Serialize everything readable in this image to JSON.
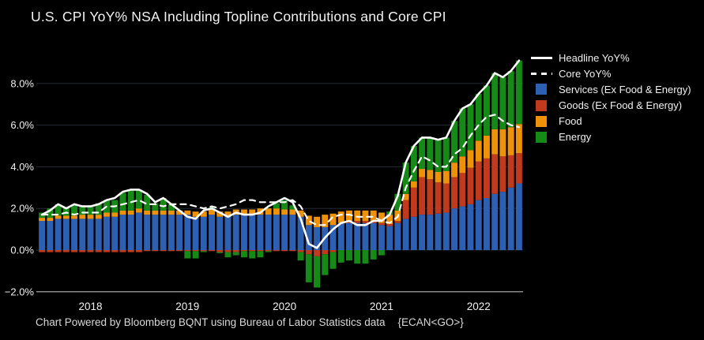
{
  "title": "U.S. CPI YoY% NSA Including Topline Contributions and Core CPI",
  "footer": {
    "text": "Chart Powered by Bloomberg BQNT using Bureau of Labor Statistics data",
    "code": "{ECAN<GO>}"
  },
  "colors": {
    "services": "#2d5fb3",
    "goods": "#c23a1d",
    "food": "#ee9209",
    "energy": "#168a16",
    "headline": "#ffffff",
    "core": "#ffffff",
    "grid": "#222b37",
    "axis": "#b8b8b8",
    "text": "#f0f0f0",
    "background": "#000000"
  },
  "legend": {
    "items": [
      {
        "label": "Headline YoY%",
        "key": "headline",
        "swatch": "line-solid"
      },
      {
        "label": "Core YoY%",
        "key": "core",
        "swatch": "line-dashed"
      },
      {
        "label": "Services (Ex Food & Energy)",
        "key": "services",
        "swatch": "box"
      },
      {
        "label": "Goods (Ex Food & Energy)",
        "key": "goods",
        "swatch": "box"
      },
      {
        "label": "Food",
        "key": "food",
        "swatch": "box"
      },
      {
        "label": "Energy",
        "key": "energy",
        "swatch": "box"
      }
    ]
  },
  "chart_data": {
    "type": "stacked-bar+line",
    "title": "U.S. CPI YoY% NSA Including Topline Contributions and Core CPI",
    "x": [
      "2017-07",
      "2017-08",
      "2017-09",
      "2017-10",
      "2017-11",
      "2017-12",
      "2018-01",
      "2018-02",
      "2018-03",
      "2018-04",
      "2018-05",
      "2018-06",
      "2018-07",
      "2018-08",
      "2018-09",
      "2018-10",
      "2018-11",
      "2018-12",
      "2019-01",
      "2019-02",
      "2019-03",
      "2019-04",
      "2019-05",
      "2019-06",
      "2019-07",
      "2019-08",
      "2019-09",
      "2019-10",
      "2019-11",
      "2019-12",
      "2020-01",
      "2020-02",
      "2020-03",
      "2020-04",
      "2020-05",
      "2020-06",
      "2020-07",
      "2020-08",
      "2020-09",
      "2020-10",
      "2020-11",
      "2020-12",
      "2021-01",
      "2021-02",
      "2021-03",
      "2021-04",
      "2021-05",
      "2021-06",
      "2021-07",
      "2021-08",
      "2021-09",
      "2021-10",
      "2021-11",
      "2021-12",
      "2022-01",
      "2022-02",
      "2022-03",
      "2022-04",
      "2022-05",
      "2022-06"
    ],
    "y_axis": {
      "ticks": [
        -2,
        0,
        2,
        4,
        6,
        8
      ],
      "tick_labels": [
        "−2.0%",
        "0.0%",
        "2.0%",
        "4.0%",
        "6.0%",
        "8.0%"
      ],
      "range": [
        -2.05,
        9.5
      ],
      "unit": "percent",
      "grid": true
    },
    "x_axis": {
      "tick_labels": [
        "2018",
        "2019",
        "2020",
        "2021",
        "2022"
      ],
      "tick_month_index": [
        6,
        18,
        30,
        42,
        54
      ]
    },
    "bar_series": [
      {
        "name": "Services (Ex Food & Energy)",
        "key": "services",
        "values": [
          1.4,
          1.4,
          1.5,
          1.5,
          1.5,
          1.5,
          1.5,
          1.5,
          1.6,
          1.6,
          1.7,
          1.7,
          1.8,
          1.7,
          1.7,
          1.7,
          1.7,
          1.7,
          1.7,
          1.6,
          1.6,
          1.7,
          1.6,
          1.6,
          1.7,
          1.7,
          1.7,
          1.7,
          1.7,
          1.7,
          1.7,
          1.7,
          1.6,
          1.2,
          1.1,
          1.1,
          1.2,
          1.3,
          1.3,
          1.3,
          1.3,
          1.3,
          1.2,
          1.15,
          1.3,
          1.5,
          1.6,
          1.7,
          1.7,
          1.75,
          1.8,
          2.0,
          2.1,
          2.2,
          2.4,
          2.5,
          2.7,
          2.8,
          3.0,
          3.2
        ]
      },
      {
        "name": "Goods (Ex Food & Energy)",
        "key": "goods",
        "values": [
          -0.1,
          -0.1,
          -0.1,
          -0.1,
          -0.1,
          -0.1,
          -0.1,
          -0.1,
          -0.1,
          -0.1,
          -0.1,
          -0.1,
          -0.1,
          -0.05,
          -0.05,
          -0.05,
          -0.05,
          -0.05,
          -0.05,
          -0.05,
          -0.05,
          -0.05,
          -0.1,
          -0.1,
          -0.1,
          -0.05,
          -0.05,
          -0.05,
          -0.05,
          -0.05,
          -0.05,
          -0.05,
          -0.1,
          -0.2,
          -0.3,
          -0.2,
          -0.1,
          0.0,
          0.1,
          0.1,
          0.1,
          0.1,
          0.1,
          0.1,
          0.1,
          0.9,
          1.4,
          1.8,
          1.7,
          1.5,
          1.4,
          1.5,
          1.6,
          1.75,
          1.85,
          1.9,
          1.9,
          1.7,
          1.55,
          1.45
        ]
      },
      {
        "name": "Food",
        "key": "food",
        "values": [
          0.15,
          0.15,
          0.15,
          0.15,
          0.15,
          0.2,
          0.2,
          0.2,
          0.2,
          0.2,
          0.2,
          0.2,
          0.2,
          0.2,
          0.2,
          0.2,
          0.2,
          0.2,
          0.2,
          0.25,
          0.25,
          0.25,
          0.25,
          0.25,
          0.25,
          0.25,
          0.25,
          0.3,
          0.3,
          0.3,
          0.25,
          0.25,
          0.3,
          0.45,
          0.5,
          0.6,
          0.55,
          0.55,
          0.5,
          0.5,
          0.5,
          0.5,
          0.5,
          0.45,
          0.5,
          0.3,
          0.3,
          0.4,
          0.45,
          0.5,
          0.6,
          0.7,
          0.8,
          0.85,
          1.0,
          1.1,
          1.2,
          1.3,
          1.35,
          1.4
        ]
      },
      {
        "name": "Energy",
        "key": "energy",
        "values": [
          0.25,
          0.45,
          0.55,
          0.4,
          0.5,
          0.45,
          0.45,
          0.55,
          0.6,
          0.6,
          0.85,
          0.95,
          0.9,
          0.75,
          0.35,
          0.6,
          0.3,
          0.0,
          -0.35,
          -0.35,
          -0.05,
          0.1,
          -0.05,
          -0.25,
          -0.15,
          -0.3,
          -0.35,
          -0.3,
          -0.05,
          0.25,
          0.45,
          0.2,
          -0.4,
          -1.35,
          -1.5,
          -1.0,
          -0.8,
          -0.6,
          -0.5,
          -0.65,
          -0.65,
          -0.45,
          -0.25,
          0.15,
          0.8,
          1.5,
          1.7,
          1.5,
          1.55,
          1.55,
          1.6,
          2.0,
          2.3,
          2.2,
          2.25,
          2.4,
          2.7,
          2.5,
          2.7,
          3.05
        ]
      }
    ],
    "line_series": [
      {
        "name": "Headline YoY%",
        "key": "headline",
        "style": "solid",
        "values": [
          1.7,
          1.9,
          2.2,
          2.0,
          2.2,
          2.1,
          2.1,
          2.2,
          2.4,
          2.5,
          2.8,
          2.9,
          2.9,
          2.7,
          2.3,
          2.5,
          2.2,
          1.9,
          1.6,
          1.5,
          1.9,
          2.0,
          1.8,
          1.6,
          1.8,
          1.7,
          1.7,
          1.8,
          2.1,
          2.3,
          2.5,
          2.3,
          1.5,
          0.3,
          0.1,
          0.6,
          1.0,
          1.3,
          1.4,
          1.2,
          1.2,
          1.4,
          1.4,
          1.7,
          2.6,
          4.2,
          5.0,
          5.4,
          5.4,
          5.3,
          5.4,
          6.2,
          6.8,
          7.0,
          7.5,
          7.9,
          8.5,
          8.3,
          8.6,
          9.1
        ]
      },
      {
        "name": "Core YoY%",
        "key": "core",
        "style": "dashed",
        "values": [
          1.7,
          1.7,
          1.7,
          1.8,
          1.7,
          1.8,
          1.8,
          1.8,
          2.1,
          2.1,
          2.2,
          2.3,
          2.4,
          2.2,
          2.2,
          2.1,
          2.2,
          2.2,
          2.2,
          2.1,
          2.0,
          2.1,
          2.0,
          2.1,
          2.2,
          2.4,
          2.4,
          2.3,
          2.3,
          2.3,
          2.3,
          2.4,
          2.1,
          1.4,
          1.2,
          1.2,
          1.6,
          1.7,
          1.7,
          1.6,
          1.6,
          1.6,
          1.4,
          1.3,
          1.6,
          3.0,
          3.8,
          4.5,
          4.3,
          4.0,
          4.0,
          4.6,
          4.9,
          5.5,
          6.0,
          6.4,
          6.5,
          6.2,
          6.0,
          5.9
        ]
      }
    ],
    "legend_position": "top-right"
  }
}
